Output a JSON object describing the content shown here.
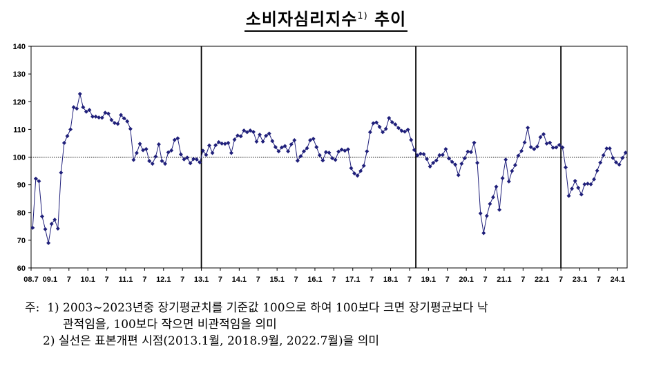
{
  "title": "소비자심리지수",
  "title_sup": "1)",
  "title_suffix": "추이",
  "chart_data": {
    "type": "line",
    "title": "소비자심리지수 추이",
    "ylim": [
      60,
      140
    ],
    "y_ticks": [
      60,
      70,
      80,
      90,
      100,
      110,
      120,
      130,
      140
    ],
    "reference_line": 100,
    "x_tick_labels": [
      "08.7",
      "09.1",
      "7",
      "10.1",
      "7",
      "11.1",
      "7",
      "12.1",
      "7",
      "13.1",
      "7",
      "14.1",
      "7",
      "15.1",
      "7",
      "16.1",
      "7",
      "17.1",
      "7",
      "18.1",
      "7",
      "19.1",
      "7",
      "20.1",
      "7",
      "21.1",
      "7",
      "22.1",
      "7",
      "23.1",
      "7",
      "24.1"
    ],
    "x_start": "2008.7",
    "vertical_lines": [
      "2013.1",
      "2018.9",
      "2022.7"
    ],
    "series": [
      {
        "color": "#1f1f7a",
        "values": [
          74.5,
          92.2,
          91.3,
          78.6,
          74.0,
          69.0,
          75.9,
          77.4,
          74.2,
          94.4,
          105.1,
          107.6,
          110.0,
          118.0,
          117.5,
          122.8,
          118.0,
          116.4,
          117.0,
          114.6,
          114.6,
          114.3,
          114.2,
          116.0,
          115.7,
          113.4,
          112.3,
          112.0,
          115.2,
          114.0,
          112.9,
          110.2,
          99.0,
          101.5,
          104.8,
          102.5,
          102.9,
          98.6,
          97.6,
          100.2,
          104.6,
          98.6,
          97.6,
          101.7,
          102.4,
          106.2,
          106.8,
          101.0,
          99.2,
          99.8,
          97.8,
          99.3,
          99.2,
          98.1,
          102.3,
          100.8,
          104.2,
          101.5,
          104.3,
          105.4,
          104.9,
          104.8,
          105.1,
          101.5,
          106.3,
          107.8,
          107.5,
          109.6,
          109.0,
          109.6,
          109.1,
          105.6,
          108.1,
          105.6,
          107.7,
          108.5,
          105.8,
          103.6,
          102.1,
          103.5,
          104.0,
          102.1,
          104.6,
          106.1,
          98.7,
          100.3,
          102.1,
          103.2,
          106.1,
          106.6,
          103.6,
          100.7,
          98.8,
          101.8,
          101.6,
          99.6,
          99.0,
          102.0,
          102.7,
          102.3,
          102.8,
          96.0,
          94.1,
          93.3,
          95.0,
          96.9,
          102.1,
          109.0,
          112.2,
          112.5,
          110.9,
          109.0,
          110.2,
          114.1,
          112.6,
          111.8,
          110.5,
          109.5,
          109.2,
          109.9,
          106.2,
          102.6,
          100.6,
          101.2,
          101.1,
          99.3,
          96.6,
          97.9,
          98.8,
          100.7,
          100.8,
          102.9,
          99.5,
          98.3,
          97.3,
          93.5,
          97.6,
          99.6,
          102.0,
          101.8,
          105.2,
          97.9,
          79.7,
          72.6,
          78.8,
          83.1,
          85.5,
          89.3,
          81.0,
          92.4,
          99.1,
          91.2,
          95.0,
          97.1,
          100.5,
          102.2,
          105.3,
          110.6,
          103.6,
          102.9,
          103.8,
          107.2,
          108.3,
          104.9,
          105.2,
          103.4,
          103.5,
          104.4,
          103.5,
          96.3,
          86.0,
          88.6,
          91.4,
          88.9,
          86.5,
          90.2,
          90.4,
          90.2,
          92.0,
          95.1,
          98.0,
          100.7,
          103.1,
          103.1,
          99.7,
          98.1,
          97.3,
          99.7,
          101.6
        ]
      }
    ]
  },
  "notes": {
    "prefix": "주:",
    "n1_num": "1)",
    "n1_line1": "2003∼2023년중 장기평균치를 기준값 100으로 하여 100보다 크면 장기평균보다 낙",
    "n1_line2": "관적임을, 100보다 작으면 비관적임을 의미",
    "n2_num": "2)",
    "n2_text": "실선은 표본개편 시점(2013.1월, 2018.9월, 2022.7월)을 의미"
  }
}
